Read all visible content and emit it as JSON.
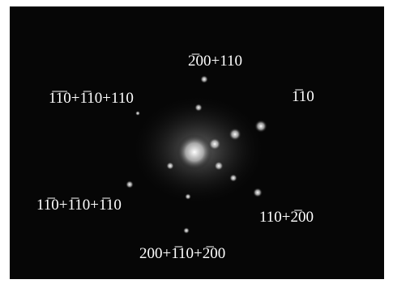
{
  "labels": [
    "2̅00+110",
    "1̅1̅0+1̅10+110",
    "1̅10",
    "11̅0+1̅10+1̅10",
    "110+2̅00",
    "200+1̅10+2̅00"
  ]
}
